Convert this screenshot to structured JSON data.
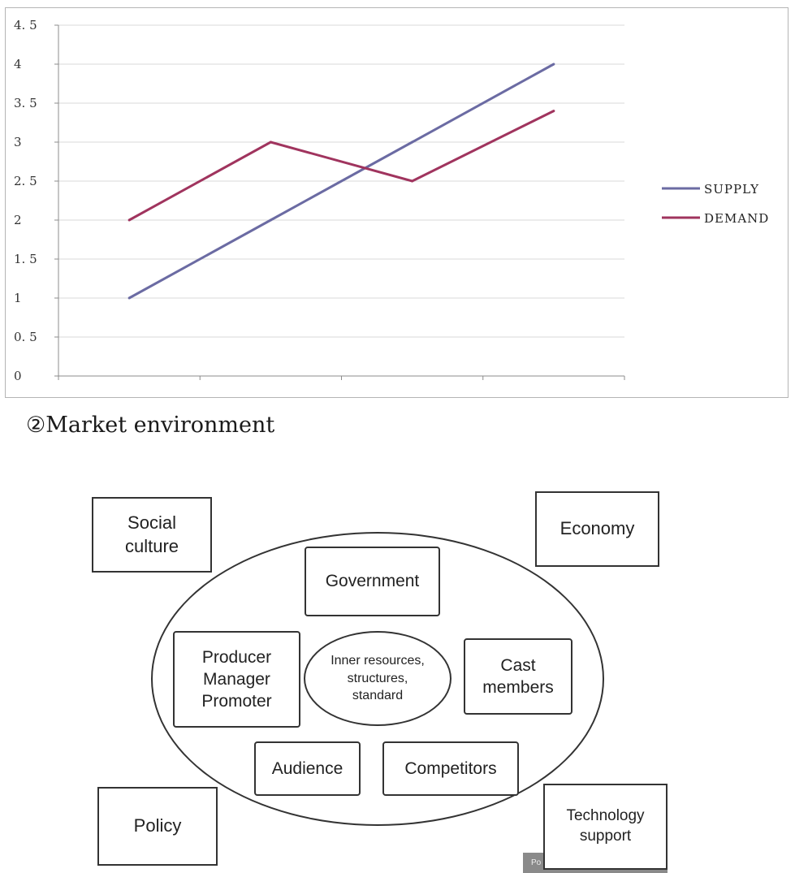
{
  "chart_data": {
    "type": "line",
    "categories": [
      "",
      "",
      "",
      ""
    ],
    "ylim": [
      0,
      4.5
    ],
    "y_ticks": [
      "0",
      "0.5",
      "1",
      "1.5",
      "2",
      "2.5",
      "3",
      "3.5",
      "4",
      "4.5"
    ],
    "grid": true,
    "legend_position": "right",
    "series": [
      {
        "name": "SUPPLY",
        "values": [
          1,
          2,
          3,
          4
        ],
        "color": "#6b6ba3"
      },
      {
        "name": "DEMAND",
        "values": [
          2,
          3,
          2.5,
          3.4
        ],
        "color": "#a0345e"
      }
    ]
  },
  "section": {
    "heading": "②Market environment"
  },
  "diagram": {
    "outer_factors": {
      "social_culture": "Social\nculture",
      "economy": "Economy",
      "policy": "Policy",
      "technology_support": "Technology\nsupport"
    },
    "inner_factors": {
      "government": "Government",
      "producer": "Producer\nManager\nPromoter",
      "cast_members": "Cast\nmembers",
      "audience": "Audience",
      "competitors": "Competitors",
      "core": "Inner resources,\nstructures,\nstandard"
    }
  },
  "footer_fragment": "Po"
}
